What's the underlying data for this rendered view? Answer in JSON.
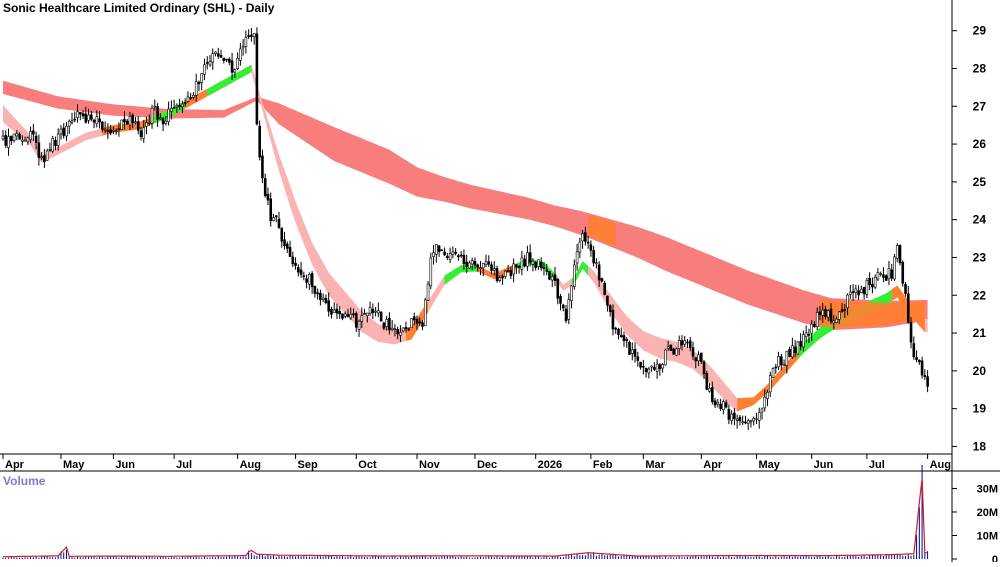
{
  "chart_data": {
    "type": "candlestick",
    "title": "Sonic Healthcare Limited Ordinary (SHL) - Daily",
    "volume_label": "Volume",
    "x_ticks": [
      "Apr",
      "May",
      "Jun",
      "Jul",
      "Aug",
      "Sep",
      "Oct",
      "Nov",
      "Dec",
      "2026",
      "Feb",
      "Mar",
      "Apr",
      "May",
      "Jun",
      "Jul",
      "Aug"
    ],
    "y_ticks": [
      18,
      19,
      20,
      21,
      22,
      23,
      24,
      25,
      26,
      27,
      28,
      29
    ],
    "ylim": [
      17.8,
      29.6
    ],
    "volume_ticks": [
      {
        "value": 0,
        "label": "0"
      },
      {
        "value": 10,
        "label": "10M"
      },
      {
        "value": 20,
        "label": "20M"
      },
      {
        "value": 30,
        "label": "30M"
      }
    ],
    "volume_ylim": [
      0,
      37
    ],
    "price_path": [
      [
        0,
        26.1
      ],
      [
        6,
        26.2
      ],
      [
        10,
        26.3
      ],
      [
        14,
        25.6
      ],
      [
        20,
        26.2
      ],
      [
        26,
        26.7
      ],
      [
        32,
        26.7
      ],
      [
        40,
        26.4
      ],
      [
        46,
        26.6
      ],
      [
        50,
        26.3
      ],
      [
        54,
        26.9
      ],
      [
        58,
        26.7
      ],
      [
        62,
        26.9
      ],
      [
        66,
        27.0
      ],
      [
        70,
        27.6
      ],
      [
        74,
        28.1
      ],
      [
        76,
        28.4
      ],
      [
        80,
        28.2
      ],
      [
        84,
        28.0
      ],
      [
        88,
        28.7
      ],
      [
        91,
        29.0
      ],
      [
        92,
        26.6
      ],
      [
        94,
        25.0
      ],
      [
        97,
        24.1
      ],
      [
        100,
        23.8
      ],
      [
        104,
        23.0
      ],
      [
        112,
        22.3
      ],
      [
        120,
        21.5
      ],
      [
        128,
        21.3
      ],
      [
        134,
        21.6
      ],
      [
        140,
        21.1
      ],
      [
        144,
        20.9
      ],
      [
        148,
        21.3
      ],
      [
        152,
        21.1
      ],
      [
        154,
        22.4
      ],
      [
        156,
        23.3
      ],
      [
        162,
        23.1
      ],
      [
        170,
        22.8
      ],
      [
        176,
        22.7
      ],
      [
        180,
        22.4
      ],
      [
        184,
        22.6
      ],
      [
        190,
        23.0
      ],
      [
        196,
        22.8
      ],
      [
        200,
        22.3
      ],
      [
        204,
        21.3
      ],
      [
        207,
        22.8
      ],
      [
        210,
        23.6
      ],
      [
        214,
        23.0
      ],
      [
        218,
        22.0
      ],
      [
        222,
        21.0
      ],
      [
        228,
        20.5
      ],
      [
        232,
        20.0
      ],
      [
        236,
        20.0
      ],
      [
        240,
        20.4
      ],
      [
        246,
        20.8
      ],
      [
        252,
        20.3
      ],
      [
        256,
        19.4
      ],
      [
        260,
        19.1
      ],
      [
        266,
        18.6
      ],
      [
        272,
        18.8
      ],
      [
        276,
        19.2
      ],
      [
        280,
        20.2
      ],
      [
        286,
        20.5
      ],
      [
        292,
        21.0
      ],
      [
        296,
        21.5
      ],
      [
        302,
        21.4
      ],
      [
        308,
        22.1
      ],
      [
        312,
        22.2
      ],
      [
        318,
        22.5
      ],
      [
        322,
        22.6
      ],
      [
        324,
        23.4
      ],
      [
        327,
        22.0
      ],
      [
        329,
        20.6
      ],
      [
        332,
        20.1
      ],
      [
        334,
        19.7
      ]
    ],
    "ema_short": [
      [
        0,
        26.8
      ],
      [
        10,
        26.1
      ],
      [
        14,
        25.6
      ],
      [
        22,
        25.9
      ],
      [
        30,
        26.2
      ],
      [
        40,
        26.4
      ],
      [
        50,
        26.5
      ],
      [
        60,
        26.8
      ],
      [
        70,
        27.2
      ],
      [
        80,
        27.6
      ],
      [
        90,
        28.0
      ],
      [
        94,
        27.0
      ],
      [
        100,
        25.5
      ],
      [
        106,
        24.2
      ],
      [
        112,
        23.1
      ],
      [
        118,
        22.3
      ],
      [
        124,
        21.8
      ],
      [
        130,
        21.3
      ],
      [
        136,
        21.0
      ],
      [
        142,
        20.9
      ],
      [
        148,
        21.0
      ],
      [
        154,
        21.7
      ],
      [
        160,
        22.4
      ],
      [
        166,
        22.7
      ],
      [
        172,
        22.7
      ],
      [
        178,
        22.5
      ],
      [
        184,
        22.7
      ],
      [
        190,
        22.9
      ],
      [
        196,
        22.8
      ],
      [
        200,
        22.5
      ],
      [
        203,
        22.2
      ],
      [
        207,
        22.4
      ],
      [
        210,
        22.8
      ],
      [
        214,
        22.5
      ],
      [
        220,
        21.8
      ],
      [
        226,
        21.2
      ],
      [
        232,
        20.8
      ],
      [
        238,
        20.6
      ],
      [
        244,
        20.5
      ],
      [
        250,
        20.3
      ],
      [
        256,
        19.9
      ],
      [
        262,
        19.4
      ],
      [
        266,
        19.1
      ],
      [
        272,
        19.2
      ],
      [
        278,
        19.6
      ],
      [
        284,
        20.1
      ],
      [
        290,
        20.6
      ],
      [
        296,
        21.0
      ],
      [
        302,
        21.3
      ],
      [
        308,
        21.5
      ],
      [
        314,
        21.7
      ],
      [
        320,
        21.9
      ],
      [
        324,
        22.1
      ],
      [
        328,
        21.7
      ],
      [
        334,
        21.2
      ]
    ],
    "ema_short_width": [
      [
        0,
        0.45
      ],
      [
        14,
        0.2
      ],
      [
        30,
        0.2
      ],
      [
        70,
        0.2
      ],
      [
        94,
        0.2
      ],
      [
        96,
        0.3
      ],
      [
        104,
        0.55
      ],
      [
        118,
        0.6
      ],
      [
        130,
        0.55
      ],
      [
        146,
        0.35
      ],
      [
        154,
        0.3
      ],
      [
        170,
        0.15
      ],
      [
        200,
        0.15
      ],
      [
        210,
        0.2
      ],
      [
        220,
        0.45
      ],
      [
        240,
        0.55
      ],
      [
        262,
        0.45
      ],
      [
        272,
        0.2
      ],
      [
        300,
        0.3
      ],
      [
        320,
        0.3
      ],
      [
        334,
        0.35
      ]
    ],
    "ema_long": [
      [
        0,
        27.5
      ],
      [
        20,
        27.1
      ],
      [
        40,
        26.9
      ],
      [
        60,
        26.8
      ],
      [
        80,
        26.8
      ],
      [
        92,
        27.2
      ],
      [
        100,
        26.8
      ],
      [
        120,
        26.0
      ],
      [
        140,
        25.4
      ],
      [
        150,
        25.0
      ],
      [
        170,
        24.6
      ],
      [
        190,
        24.3
      ],
      [
        210,
        23.9
      ],
      [
        230,
        23.4
      ],
      [
        250,
        22.8
      ],
      [
        270,
        22.2
      ],
      [
        290,
        21.7
      ],
      [
        300,
        21.5
      ],
      [
        310,
        21.5
      ],
      [
        320,
        21.5
      ],
      [
        334,
        21.6
      ]
    ],
    "ema_long_width": [
      [
        0,
        0.35
      ],
      [
        40,
        0.3
      ],
      [
        80,
        0.2
      ],
      [
        92,
        0.1
      ],
      [
        100,
        0.55
      ],
      [
        120,
        0.9
      ],
      [
        140,
        0.9
      ],
      [
        160,
        0.65
      ],
      [
        200,
        0.55
      ],
      [
        240,
        0.9
      ],
      [
        270,
        0.9
      ],
      [
        300,
        0.85
      ],
      [
        320,
        0.7
      ],
      [
        334,
        0.55
      ]
    ],
    "volume_path": [
      [
        0,
        0.7
      ],
      [
        20,
        1.1
      ],
      [
        23,
        5.0
      ],
      [
        24,
        0.9
      ],
      [
        40,
        1.0
      ],
      [
        60,
        0.9
      ],
      [
        88,
        1.2
      ],
      [
        89,
        2.8
      ],
      [
        90,
        3.5
      ],
      [
        92,
        1.9
      ],
      [
        100,
        1.4
      ],
      [
        140,
        1.0
      ],
      [
        160,
        1.1
      ],
      [
        200,
        1.0
      ],
      [
        212,
        2.5
      ],
      [
        230,
        1.0
      ],
      [
        260,
        1.2
      ],
      [
        300,
        1.2
      ],
      [
        320,
        1.6
      ],
      [
        330,
        2.0
      ],
      [
        333,
        36.0
      ],
      [
        334,
        2.5
      ]
    ],
    "colors": {
      "up_candle": "#ffffff",
      "down_candle": "#000000",
      "ema_long_fill": "#f87e7e",
      "ema_short_fill": "#fbb2b2",
      "bull_fill": "#33ee33",
      "overlap_fill": "#ff7f32",
      "volume_bar": "#0000aa",
      "volume_avg": "#cc2222"
    }
  }
}
